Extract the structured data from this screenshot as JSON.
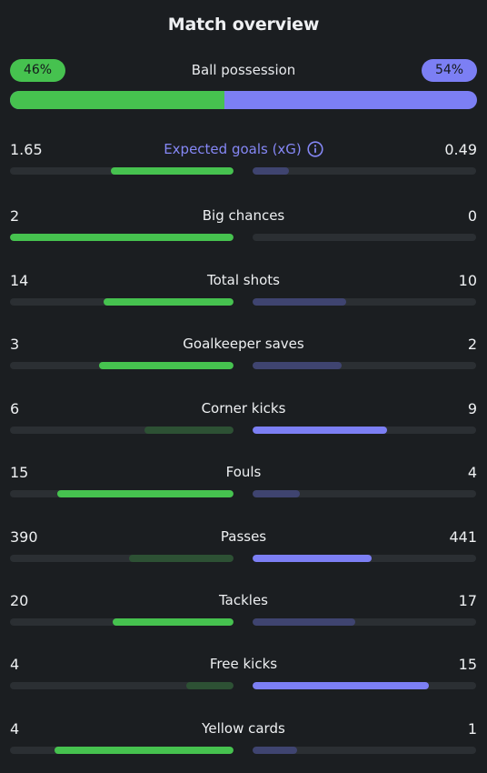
{
  "title": "Match overview",
  "colors": {
    "home_win": "#46c24f",
    "home_lose": "#2d5134",
    "away_win": "#7c7ff4",
    "away_lose": "#3f4470",
    "accent": "#8587f5"
  },
  "possession": {
    "label": "Ball possession",
    "home": "46%",
    "away": "54%",
    "home_fraction": 0.46
  },
  "stats": [
    {
      "id": "expected-goals",
      "label": "Expected goals (xG)",
      "home": "1.65",
      "away": "0.49",
      "home_num": 1.65,
      "away_num": 0.49,
      "scale_max": 3.0,
      "accent": true,
      "info_icon": "info-icon"
    },
    {
      "id": "big-chances",
      "label": "Big chances",
      "home": "2",
      "away": "0",
      "home_num": 2,
      "away_num": 0
    },
    {
      "id": "total-shots",
      "label": "Total shots",
      "home": "14",
      "away": "10",
      "home_num": 14,
      "away_num": 10
    },
    {
      "id": "goalkeeper-saves",
      "label": "Goalkeeper saves",
      "home": "3",
      "away": "2",
      "home_num": 3,
      "away_num": 2
    },
    {
      "id": "corner-kicks",
      "label": "Corner kicks",
      "home": "6",
      "away": "9",
      "home_num": 6,
      "away_num": 9
    },
    {
      "id": "fouls",
      "label": "Fouls",
      "home": "15",
      "away": "4",
      "home_num": 15,
      "away_num": 4
    },
    {
      "id": "passes",
      "label": "Passes",
      "home": "390",
      "away": "441",
      "home_num": 390,
      "away_num": 441
    },
    {
      "id": "tackles",
      "label": "Tackles",
      "home": "20",
      "away": "17",
      "home_num": 20,
      "away_num": 17
    },
    {
      "id": "free-kicks",
      "label": "Free kicks",
      "home": "4",
      "away": "15",
      "home_num": 4,
      "away_num": 15
    },
    {
      "id": "yellow-cards",
      "label": "Yellow cards",
      "home": "4",
      "away": "1",
      "home_num": 4,
      "away_num": 1
    }
  ]
}
